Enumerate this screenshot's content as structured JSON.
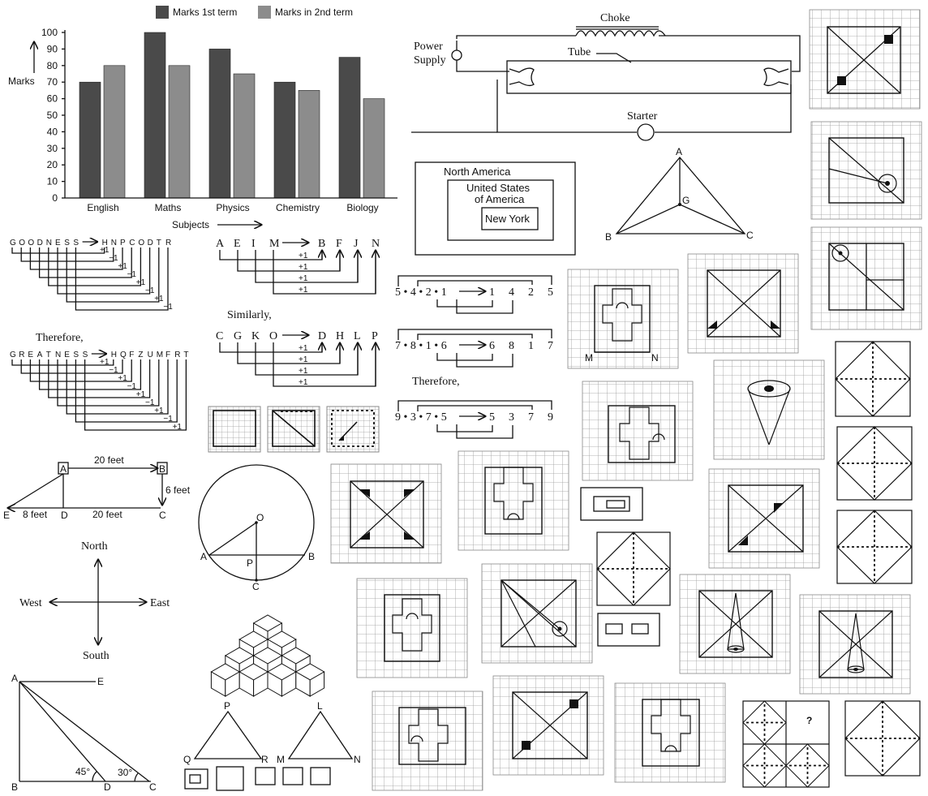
{
  "chart_data": {
    "type": "bar",
    "categories": [
      "English",
      "Maths",
      "Physics",
      "Chemistry",
      "Biology"
    ],
    "series": [
      {
        "name": "Marks 1st term",
        "values": [
          70,
          100,
          90,
          70,
          85
        ],
        "color": "#4a4a4a"
      },
      {
        "name": "Marks in 2nd term",
        "values": [
          80,
          80,
          75,
          65,
          60
        ],
        "color": "#8c8c8c"
      }
    ],
    "yticks": [
      "0",
      "10",
      "20",
      "30",
      "40",
      "50",
      "60",
      "70",
      "80",
      "90",
      "100"
    ],
    "ylim": [
      0,
      100
    ],
    "xlabel": "Subjects",
    "ylabel": "Marks",
    "legend": "top"
  },
  "circuit": {
    "choke": "Choke",
    "tube": "Tube",
    "power1": "Power",
    "power2": "Supply",
    "starter": "Starter"
  },
  "venn": {
    "outer": "North America",
    "middle1": "United States",
    "middle2": "of America",
    "inner": "New York"
  },
  "triangle_g": {
    "a": "A",
    "b": "B",
    "c": "C",
    "g": "G"
  },
  "code1": {
    "top": [
      "G",
      "O",
      "O",
      "D",
      "N",
      "E",
      "S",
      "S"
    ],
    "arrow_to": [
      "H",
      "N",
      "P",
      "C",
      "O",
      "D",
      "T",
      "R"
    ],
    "steps": [
      "+1",
      "−1",
      "+1",
      "−1",
      "+1",
      "−1",
      "+1",
      "−1"
    ],
    "therefore": "Therefore,",
    "bottom": [
      "G",
      "R",
      "E",
      "A",
      "T",
      "N",
      "E",
      "S",
      "S"
    ],
    "bottom_to": [
      "H",
      "Q",
      "F",
      "Z",
      "U",
      "M",
      "F",
      "R",
      "T"
    ],
    "bottom_steps": [
      "+1",
      "−1",
      "+1",
      "−1",
      "+1",
      "−1",
      "+1",
      "−1",
      "+1"
    ]
  },
  "code2": {
    "row1_from": [
      "A",
      "E",
      "I",
      "M"
    ],
    "row1_to": [
      "B",
      "F",
      "J",
      "N"
    ],
    "similarly": "Similarly,",
    "row2_from": [
      "C",
      "G",
      "K",
      "O"
    ],
    "row2_to": [
      "D",
      "H",
      "L",
      "P"
    ],
    "step": "+1"
  },
  "numseq": {
    "row1_left": "5 • 4 • 2 • 1",
    "row1_right": [
      "1",
      "4",
      "2",
      "5"
    ],
    "row2_left": "7 • 8 • 1 • 6",
    "row2_right": [
      "6",
      "8",
      "1",
      "7"
    ],
    "therefore": "Therefore,",
    "row3_left": "9 • 3 • 7 • 5",
    "row3_right": [
      "5",
      "3",
      "7",
      "9"
    ]
  },
  "trapezoid": {
    "a": "A",
    "b": "B",
    "c": "C",
    "d": "D",
    "e": "E",
    "top": "20 feet",
    "right": "6 feet",
    "ed": "8 feet",
    "dc": "20 feet"
  },
  "circle": {
    "o": "O",
    "a": "A",
    "b": "B",
    "p": "P",
    "c": "C"
  },
  "compass": {
    "north": "North",
    "south": "South",
    "east": "East",
    "west": "West"
  },
  "height": {
    "a": "A",
    "e": "E",
    "b": "B",
    "d": "D",
    "c": "C",
    "angle1": "45°",
    "angle2": "30°"
  },
  "triangles": {
    "p": "P",
    "q": "Q",
    "r": "R",
    "l": "L",
    "m": "M",
    "n": "N"
  },
  "grid_labels": {
    "m": "M",
    "n": "N"
  },
  "question_mark": "?"
}
